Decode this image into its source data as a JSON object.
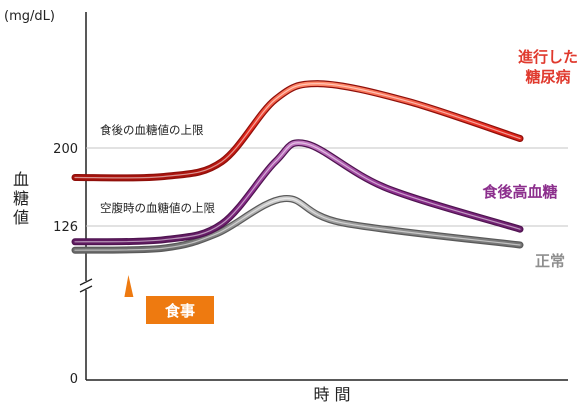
{
  "chart_data": {
    "type": "line",
    "unit": "(mg/dL)",
    "xlabel": "時 間",
    "ylabel": [
      "血",
      "糖",
      "値"
    ],
    "ytick_labels": [
      "0",
      "126",
      "200"
    ],
    "y_ticks": [
      0,
      126,
      200
    ],
    "axis_break": true,
    "grid": false,
    "reference_lines": [
      {
        "value": 200,
        "label": "食後の血糖値の上限"
      },
      {
        "value": 126,
        "label": "空腹時の血糖値の上限"
      }
    ],
    "annotation": {
      "label": "食事",
      "at_x": 0.12,
      "color": "#ee7a10"
    },
    "series": [
      {
        "label_lines": [
          "進行した",
          "糖尿病"
        ],
        "color": "#e03a2e",
        "values": [
          [
            0.0,
            172
          ],
          [
            0.2,
            173
          ],
          [
            0.33,
            187
          ],
          [
            0.45,
            246
          ],
          [
            0.55,
            261
          ],
          [
            0.75,
            244
          ],
          [
            1.0,
            209
          ]
        ]
      },
      {
        "label_lines": [
          "食後高血糖"
        ],
        "color": "#8c2f8d",
        "values": [
          [
            0.0,
            111
          ],
          [
            0.2,
            113
          ],
          [
            0.33,
            128
          ],
          [
            0.45,
            187
          ],
          [
            0.52,
            204
          ],
          [
            0.7,
            162
          ],
          [
            1.0,
            123
          ]
        ]
      },
      {
        "label_lines": [
          "正常"
        ],
        "color": "#8f8f8f",
        "values": [
          [
            0.0,
            103
          ],
          [
            0.2,
            105
          ],
          [
            0.32,
            119
          ],
          [
            0.47,
            152
          ],
          [
            0.6,
            129
          ],
          [
            1.0,
            108
          ]
        ]
      }
    ]
  }
}
